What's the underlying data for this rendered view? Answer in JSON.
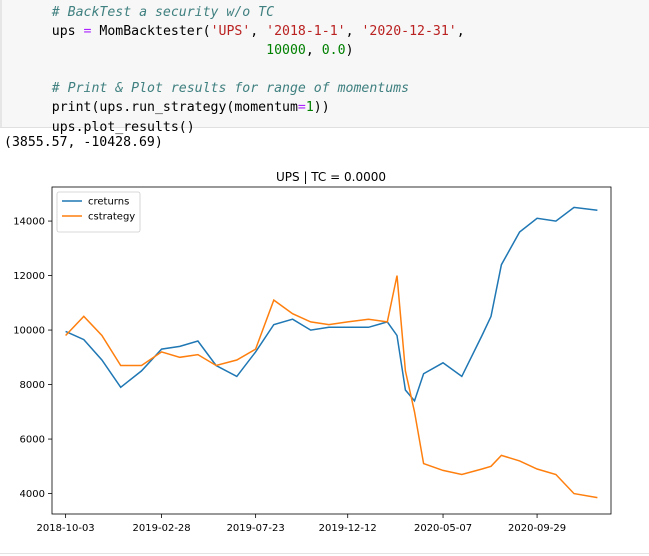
{
  "code_cell": {
    "lines": [
      "    # BackTest a security w/o TC",
      "    ups = MomBacktester('UPS', '2018-1-1', '2020-12-31',",
      "                               10000, 0.0)",
      "",
      "    # Print & Plot results for range of momentums",
      "    print(ups.run_strategy(momentum=1))",
      "    ups.plot_results()"
    ]
  },
  "output_text": "(3855.57, -10428.69)",
  "colors": {
    "creturns": "#1f77b4",
    "cstrategy": "#ff7f0e"
  },
  "chart_data": {
    "type": "line",
    "title": "UPS | TC = 0.0000",
    "xlabel": "",
    "ylabel": "",
    "x_ticks": [
      "2018-10-03",
      "2019-02-28",
      "2019-07-23",
      "2019-12-12",
      "2020-05-07",
      "2020-09-29"
    ],
    "y_ticks": [
      4000,
      6000,
      8000,
      10000,
      12000,
      14000
    ],
    "ylim": [
      3250,
      15250
    ],
    "legend_position": "top-left",
    "x": [
      "2018-10-03",
      "2018-10-31",
      "2018-11-28",
      "2018-12-27",
      "2019-01-28",
      "2019-02-28",
      "2019-03-28",
      "2019-04-25",
      "2019-05-23",
      "2019-06-24",
      "2019-07-23",
      "2019-08-20",
      "2019-09-18",
      "2019-10-16",
      "2019-11-13",
      "2019-12-12",
      "2020-01-13",
      "2020-02-11",
      "2020-02-26",
      "2020-03-10",
      "2020-03-24",
      "2020-04-07",
      "2020-05-07",
      "2020-06-05",
      "2020-07-06",
      "2020-07-20",
      "2020-08-05",
      "2020-09-02",
      "2020-09-29",
      "2020-10-28",
      "2020-11-25",
      "2020-12-31"
    ],
    "series": [
      {
        "name": "creturns",
        "values": [
          9950,
          9650,
          8900,
          7900,
          8500,
          9300,
          9400,
          9600,
          8700,
          8300,
          9200,
          10200,
          10400,
          10000,
          10100,
          10100,
          10100,
          10300,
          9800,
          7800,
          7400,
          8400,
          8800,
          8300,
          9800,
          10500,
          12400,
          13600,
          14100,
          14000,
          14500,
          14400
        ]
      },
      {
        "name": "cstrategy",
        "values": [
          9800,
          10500,
          9800,
          8700,
          8700,
          9200,
          9000,
          9100,
          8700,
          8900,
          9300,
          11100,
          10600,
          10300,
          10200,
          10300,
          10400,
          10300,
          12000,
          8500,
          7000,
          5100,
          4850,
          4700,
          4900,
          5000,
          5400,
          5200,
          4900,
          4700,
          4000,
          3850
        ]
      }
    ]
  }
}
